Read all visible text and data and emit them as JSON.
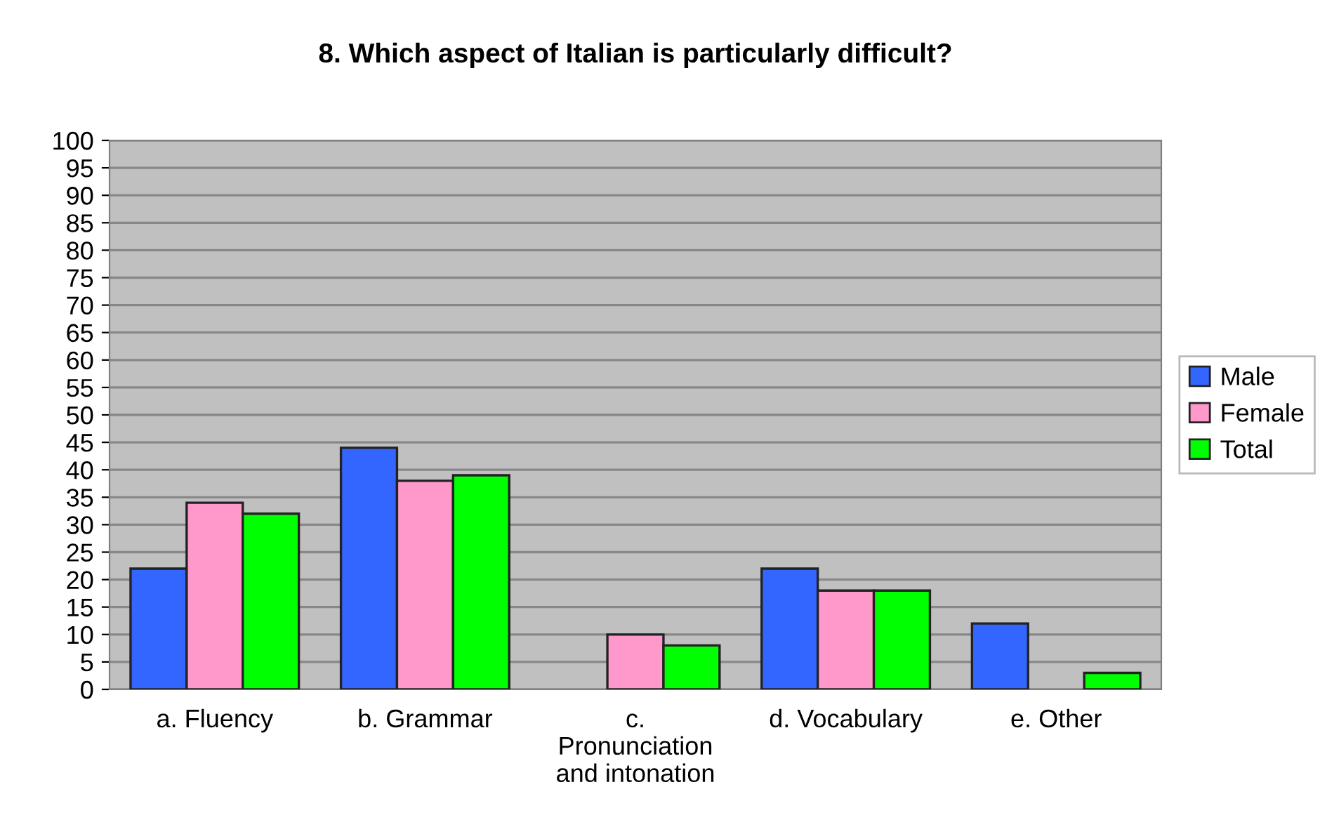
{
  "chart_data": {
    "type": "bar",
    "title": "8. Which aspect of Italian is particularly difficult?",
    "categories": [
      "a. Fluency",
      "b. Grammar",
      "c.\nPronunciation\nand intonation",
      "d. Vocabulary",
      "e. Other"
    ],
    "series": [
      {
        "name": "Male",
        "color": "#3366ff",
        "values": [
          22,
          44,
          null,
          22,
          12
        ]
      },
      {
        "name": "Female",
        "color": "#ff99cc",
        "values": [
          34,
          38,
          10,
          18,
          null
        ]
      },
      {
        "name": "Total",
        "color": "#00ff00",
        "values": [
          32,
          39,
          8,
          18,
          3
        ]
      }
    ],
    "ylim": [
      0,
      100
    ],
    "yticks": [
      0,
      5,
      10,
      15,
      20,
      25,
      30,
      35,
      40,
      45,
      50,
      55,
      60,
      65,
      70,
      75,
      80,
      85,
      90,
      95,
      100
    ],
    "grid": "y",
    "legend": "right"
  }
}
